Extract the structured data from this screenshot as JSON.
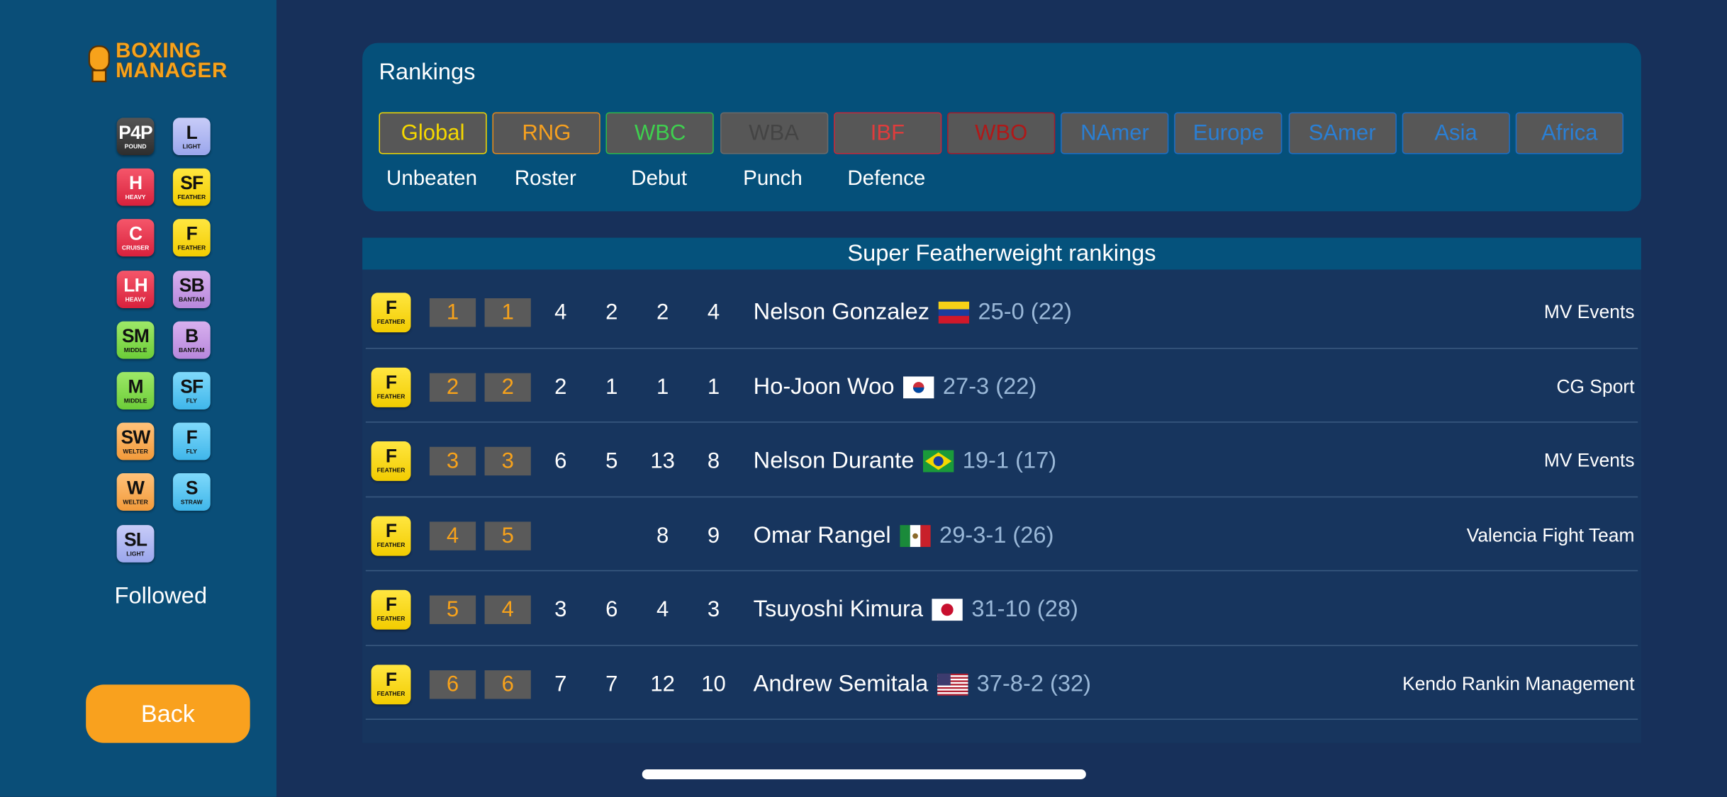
{
  "sidebar": {
    "logo": {
      "line1": "BOXING",
      "line2": "MANAGER"
    },
    "weight_classes": [
      {
        "abbr": "P4P",
        "label": "POUND"
      },
      {
        "abbr": "L",
        "label": "LIGHT"
      },
      {
        "abbr": "H",
        "label": "HEAVY"
      },
      {
        "abbr": "SF",
        "label": "FEATHER"
      },
      {
        "abbr": "C",
        "label": "CRUISER"
      },
      {
        "abbr": "F",
        "label": "FEATHER"
      },
      {
        "abbr": "LH",
        "label": "HEAVY"
      },
      {
        "abbr": "SB",
        "label": "BANTAM"
      },
      {
        "abbr": "SM",
        "label": "MIDDLE"
      },
      {
        "abbr": "B",
        "label": "BANTAM"
      },
      {
        "abbr": "M",
        "label": "MIDDLE"
      },
      {
        "abbr": "SF",
        "label": "FLY"
      },
      {
        "abbr": "SW",
        "label": "WELTER"
      },
      {
        "abbr": "F",
        "label": "FLY"
      },
      {
        "abbr": "W",
        "label": "WELTER"
      },
      {
        "abbr": "S",
        "label": "STRAW"
      },
      {
        "abbr": "SL",
        "label": "LIGHT"
      }
    ],
    "followed": "Followed",
    "back": "Back"
  },
  "rankings": {
    "title": "Rankings",
    "tabs": [
      "Global",
      "RNG",
      "WBC",
      "WBA",
      "IBF",
      "WBO",
      "NAmer",
      "Europe",
      "SAmer",
      "Asia",
      "Africa"
    ],
    "filters": [
      "Unbeaten",
      "Roster",
      "Debut",
      "Punch",
      "Defence"
    ]
  },
  "table": {
    "title": "Super Featherweight rankings",
    "rows": [
      {
        "badge": {
          "abbr": "F",
          "label": "FEATHER"
        },
        "ranks": [
          1,
          1
        ],
        "cols": [
          4,
          2,
          2,
          4
        ],
        "name": "Nelson Gonzalez",
        "record": "25-0 (22)",
        "promoter": "MV Events"
      },
      {
        "badge": {
          "abbr": "F",
          "label": "FEATHER"
        },
        "ranks": [
          2,
          2
        ],
        "cols": [
          2,
          1,
          1,
          1
        ],
        "name": "Ho-Joon Woo",
        "record": "27-3 (22)",
        "promoter": "CG Sport"
      },
      {
        "badge": {
          "abbr": "F",
          "label": "FEATHER"
        },
        "ranks": [
          3,
          3
        ],
        "cols": [
          6,
          5,
          13,
          8
        ],
        "name": "Nelson Durante",
        "record": "19-1 (17)",
        "promoter": "MV Events"
      },
      {
        "badge": {
          "abbr": "F",
          "label": "FEATHER"
        },
        "ranks": [
          4,
          5
        ],
        "cols": [
          null,
          null,
          8,
          9
        ],
        "name": "Omar Rangel",
        "record": "29-3-1 (26)",
        "promoter": "Valencia Fight Team"
      },
      {
        "badge": {
          "abbr": "F",
          "label": "FEATHER"
        },
        "ranks": [
          5,
          4
        ],
        "cols": [
          3,
          6,
          4,
          3
        ],
        "name": "Tsuyoshi Kimura",
        "record": "31-10 (28)",
        "promoter": null
      },
      {
        "badge": {
          "abbr": "F",
          "label": "FEATHER"
        },
        "ranks": [
          6,
          6
        ],
        "cols": [
          7,
          7,
          12,
          10
        ],
        "name": "Andrew Semitala",
        "record": "37-8-2 (32)",
        "promoter": "Kendo Rankin Management"
      }
    ]
  }
}
